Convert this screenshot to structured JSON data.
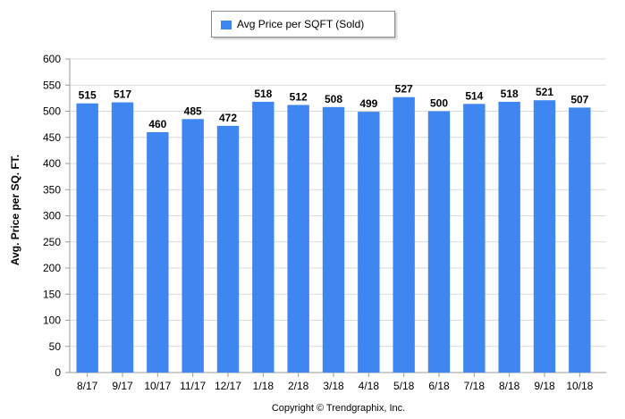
{
  "chart_data": {
    "type": "bar",
    "legend": {
      "entries": [
        "Avg Price per SQFT (Sold)"
      ],
      "placement": "top-center"
    },
    "ylabel": "Avg. Price per SQ. FT.",
    "xlabel": "",
    "ylim": [
      0,
      600
    ],
    "yticks": [
      0,
      50,
      100,
      150,
      200,
      250,
      300,
      350,
      400,
      450,
      500,
      550,
      600
    ],
    "grid": true,
    "categories": [
      "8/17",
      "9/17",
      "10/17",
      "11/17",
      "12/17",
      "1/18",
      "2/18",
      "3/18",
      "4/18",
      "5/18",
      "6/18",
      "7/18",
      "8/18",
      "9/18",
      "10/18"
    ],
    "series": [
      {
        "name": "Avg Price per SQFT (Sold)",
        "values": [
          515,
          517,
          460,
          485,
          472,
          518,
          512,
          508,
          499,
          527,
          500,
          514,
          518,
          521,
          507
        ]
      }
    ],
    "data_labels": true,
    "colors": {
      "bar": "#3f86f0",
      "grid": "#d9d9d9",
      "axis": "#9a9a9a"
    }
  },
  "footer": {
    "copyright": "Copyright © Trendgraphix, Inc."
  }
}
